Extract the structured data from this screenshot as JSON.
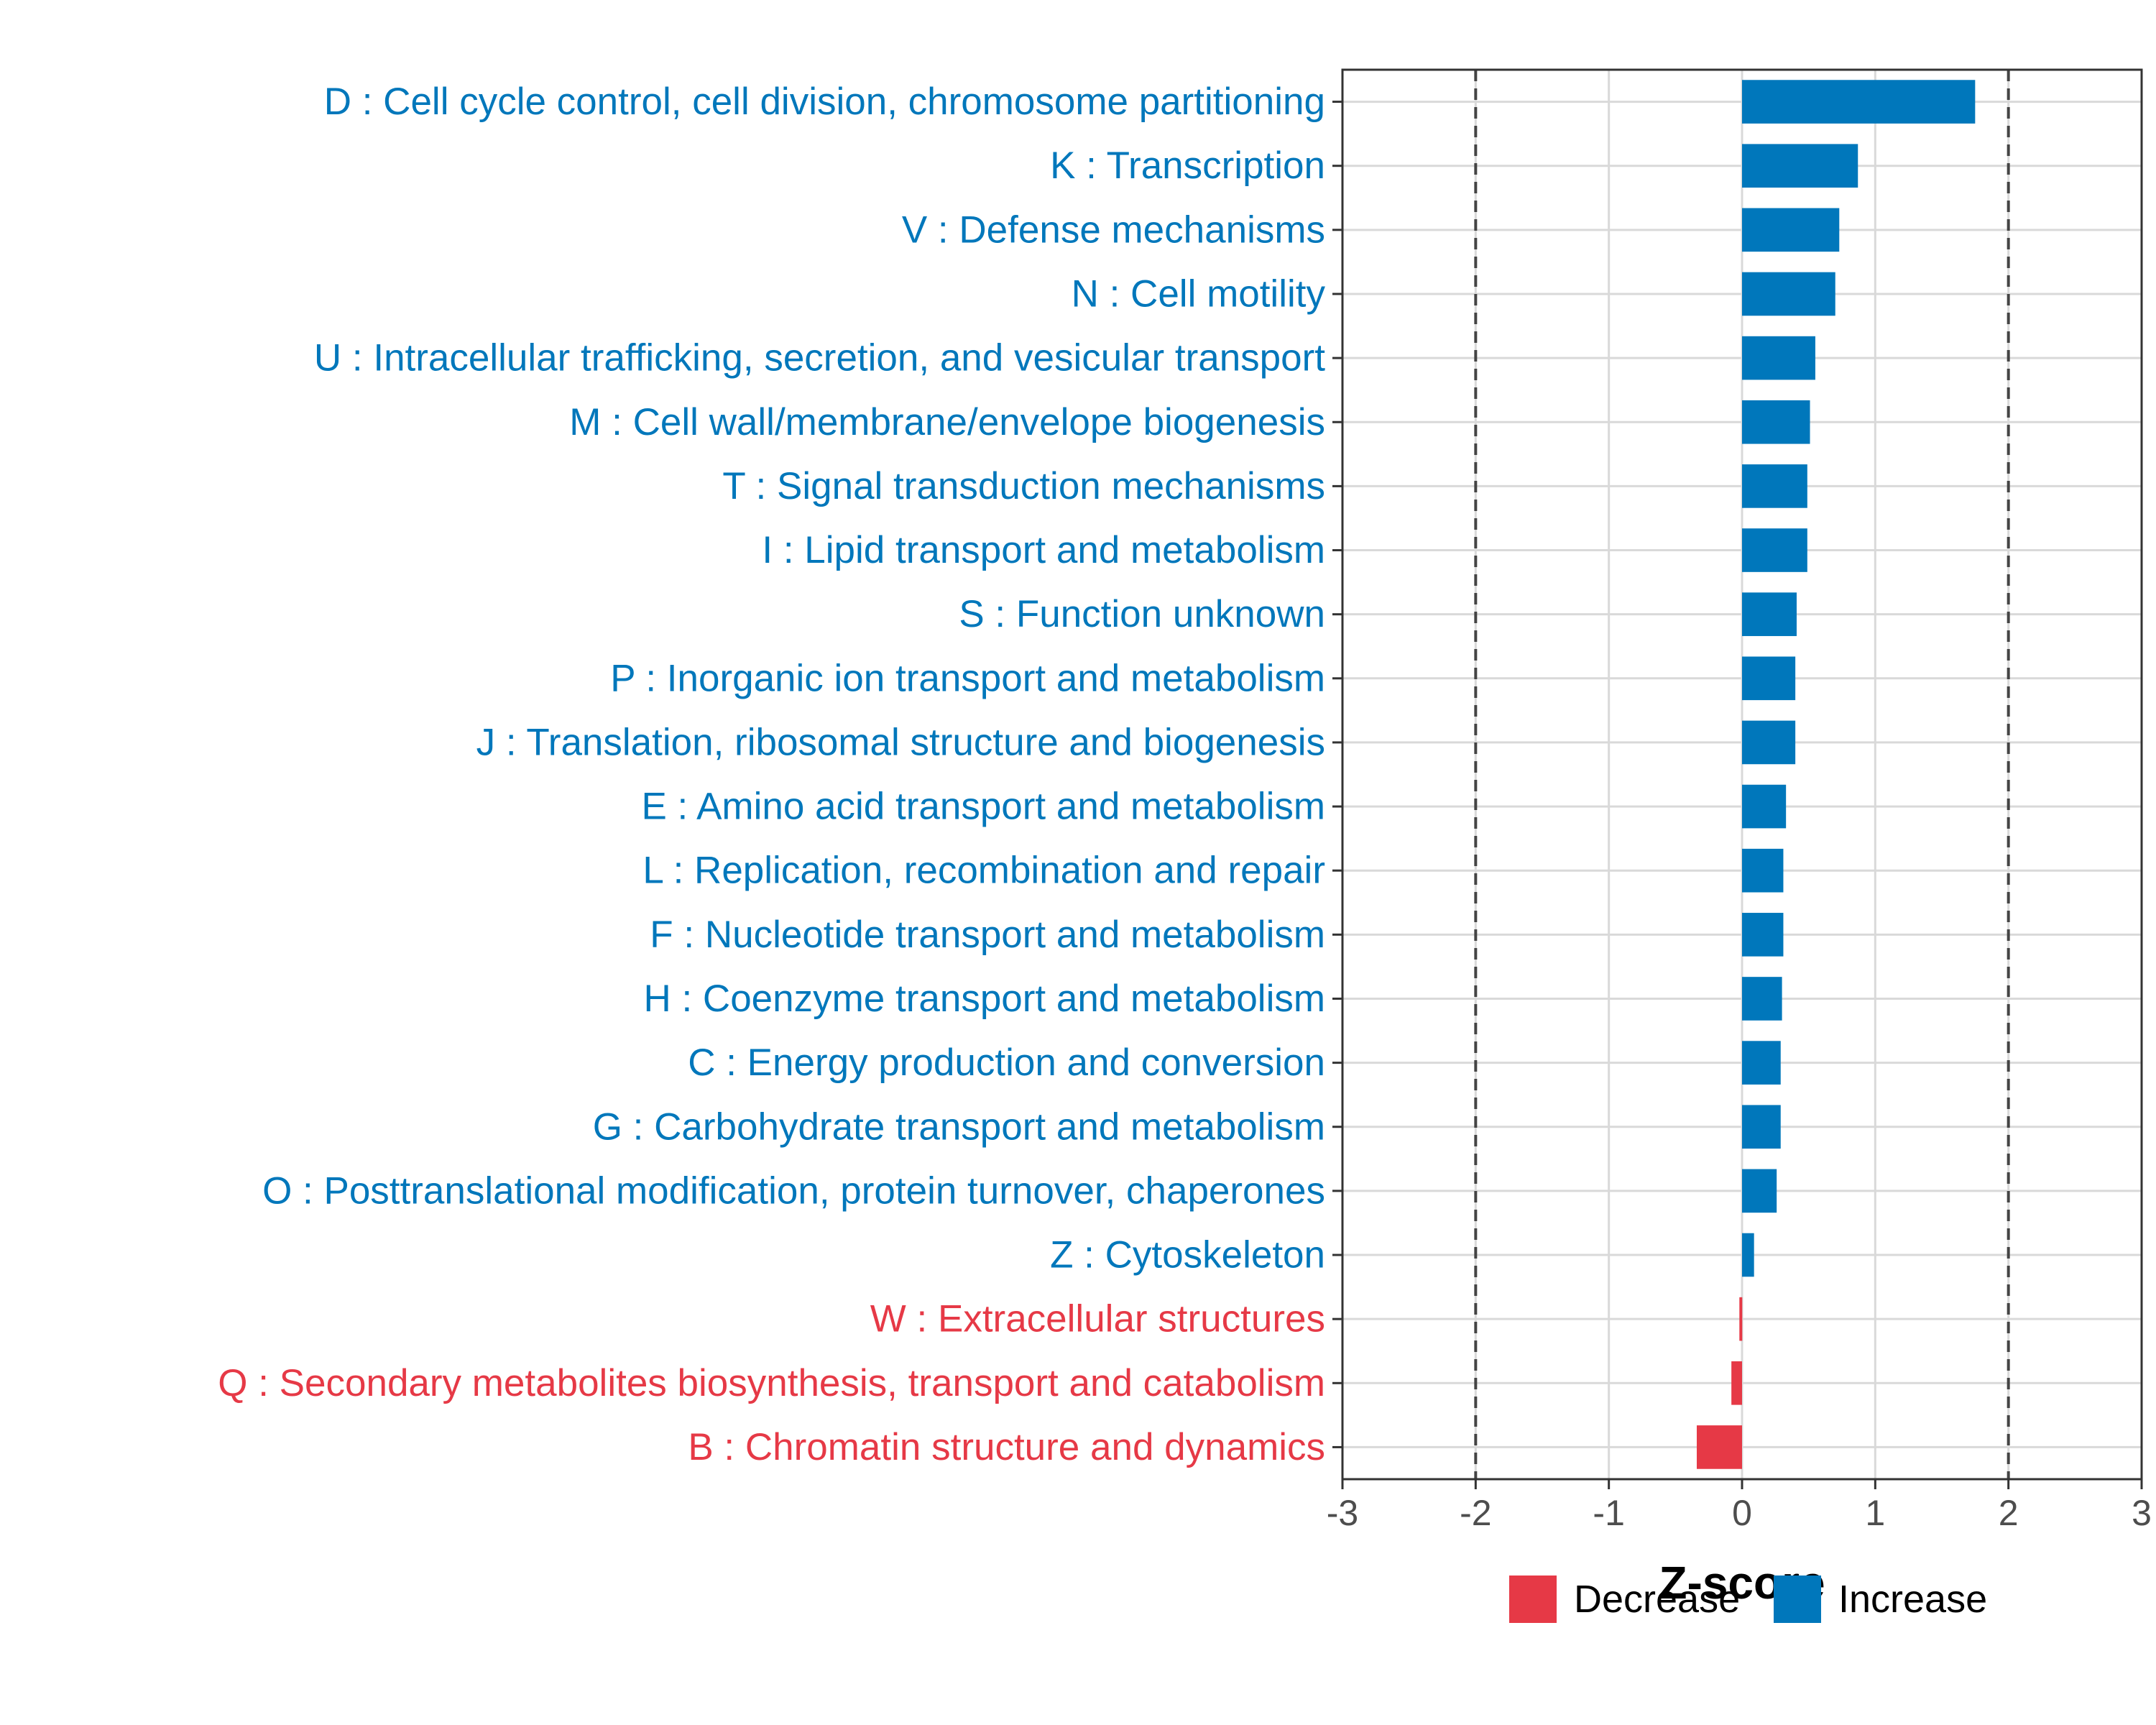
{
  "chart_data": {
    "type": "bar",
    "orientation": "horizontal",
    "xlabel": "Z-score",
    "xlim": [
      -3,
      3
    ],
    "xticks": [
      "-3",
      "-2",
      "-1",
      "0",
      "1",
      "2",
      "3"
    ],
    "xtick_values": [
      -3,
      -2,
      -1,
      0,
      1,
      2,
      3
    ],
    "reference_lines": [
      -2,
      2
    ],
    "grid": true,
    "colors": {
      "Decrease": "#e63946",
      "Increase": "#0077bb"
    },
    "legend": {
      "position": "bottom",
      "entries": [
        {
          "name": "Decrease",
          "color": "#e63946"
        },
        {
          "name": "Increase",
          "color": "#0077bb"
        }
      ]
    },
    "categories": [
      "D : Cell cycle control, cell division, chromosome partitioning",
      "K : Transcription",
      "V : Defense mechanisms",
      "N : Cell motility",
      "U : Intracellular trafficking, secretion, and vesicular transport",
      "M : Cell wall/membrane/envelope biogenesis",
      "T : Signal transduction mechanisms",
      "I : Lipid transport and metabolism",
      "S : Function unknown",
      "P : Inorganic ion transport and metabolism",
      "J : Translation, ribosomal structure and biogenesis",
      "E : Amino acid transport and metabolism",
      "L : Replication, recombination and repair",
      "F : Nucleotide transport and metabolism",
      "H : Coenzyme transport and metabolism",
      "C : Energy production and conversion",
      "G : Carbohydrate transport and metabolism",
      "O : Posttranslational modification, protein turnover, chaperones",
      "Z : Cytoskeleton",
      "W : Extracellular structures",
      "Q : Secondary metabolites biosynthesis, transport and catabolism",
      "B : Chromatin structure and dynamics"
    ],
    "values": [
      1.75,
      0.87,
      0.73,
      0.7,
      0.55,
      0.51,
      0.49,
      0.49,
      0.41,
      0.4,
      0.4,
      0.33,
      0.31,
      0.31,
      0.3,
      0.29,
      0.29,
      0.26,
      0.09,
      -0.02,
      -0.08,
      -0.34
    ],
    "direction": [
      "Increase",
      "Increase",
      "Increase",
      "Increase",
      "Increase",
      "Increase",
      "Increase",
      "Increase",
      "Increase",
      "Increase",
      "Increase",
      "Increase",
      "Increase",
      "Increase",
      "Increase",
      "Increase",
      "Increase",
      "Increase",
      "Increase",
      "Decrease",
      "Decrease",
      "Decrease"
    ]
  }
}
